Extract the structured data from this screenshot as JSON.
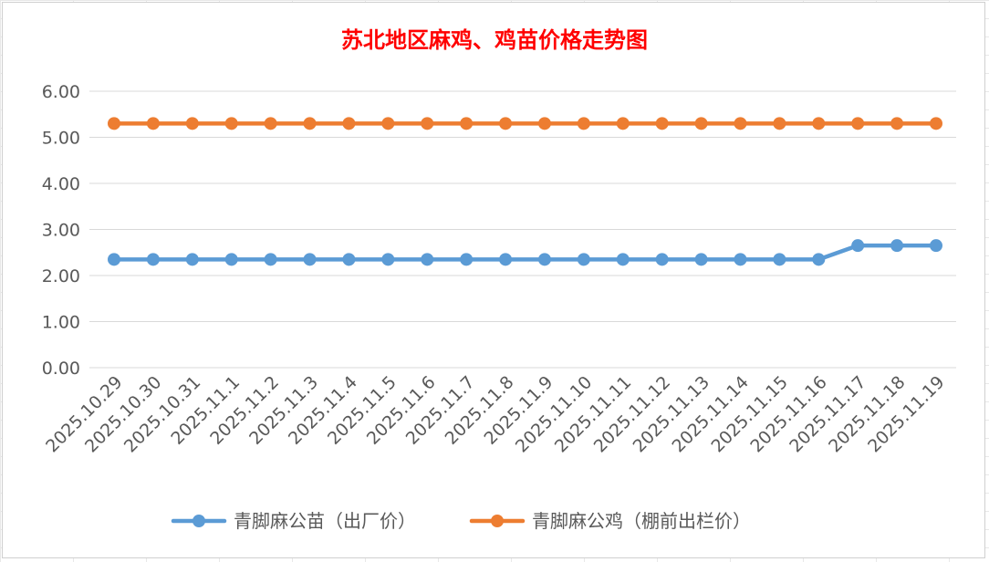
{
  "chart_data": {
    "type": "line",
    "title": "苏北地区麻鸡、鸡苗价格走势图",
    "xlabel": "",
    "ylabel": "",
    "ylim": [
      0,
      6
    ],
    "yticks": [
      "0.00",
      "1.00",
      "2.00",
      "3.00",
      "4.00",
      "5.00",
      "6.00"
    ],
    "grid": "horizontal",
    "legend_position": "bottom",
    "categories": [
      "2025.10.29",
      "2025.10.30",
      "2025.10.31",
      "2025.11.1",
      "2025.11.2",
      "2025.11.3",
      "2025.11.4",
      "2025.11.5",
      "2025.11.6",
      "2025.11.7",
      "2025.11.8",
      "2025.11.9",
      "2025.11.10",
      "2025.11.11",
      "2025.11.12",
      "2025.11.13",
      "2025.11.14",
      "2025.11.15",
      "2025.11.16",
      "2025.11.17",
      "2025.11.18",
      "2025.11.19"
    ],
    "series": [
      {
        "name": "青脚麻公苗（出厂价）",
        "color": "#5b9bd5",
        "values": [
          2.35,
          2.35,
          2.35,
          2.35,
          2.35,
          2.35,
          2.35,
          2.35,
          2.35,
          2.35,
          2.35,
          2.35,
          2.35,
          2.35,
          2.35,
          2.35,
          2.35,
          2.35,
          2.35,
          2.65,
          2.65,
          2.65
        ]
      },
      {
        "name": "青脚麻公鸡（棚前出栏价）",
        "color": "#ed7d31",
        "values": [
          5.3,
          5.3,
          5.3,
          5.3,
          5.3,
          5.3,
          5.3,
          5.3,
          5.3,
          5.3,
          5.3,
          5.3,
          5.3,
          5.3,
          5.3,
          5.3,
          5.3,
          5.3,
          5.3,
          5.3,
          5.3,
          5.3
        ]
      }
    ]
  }
}
